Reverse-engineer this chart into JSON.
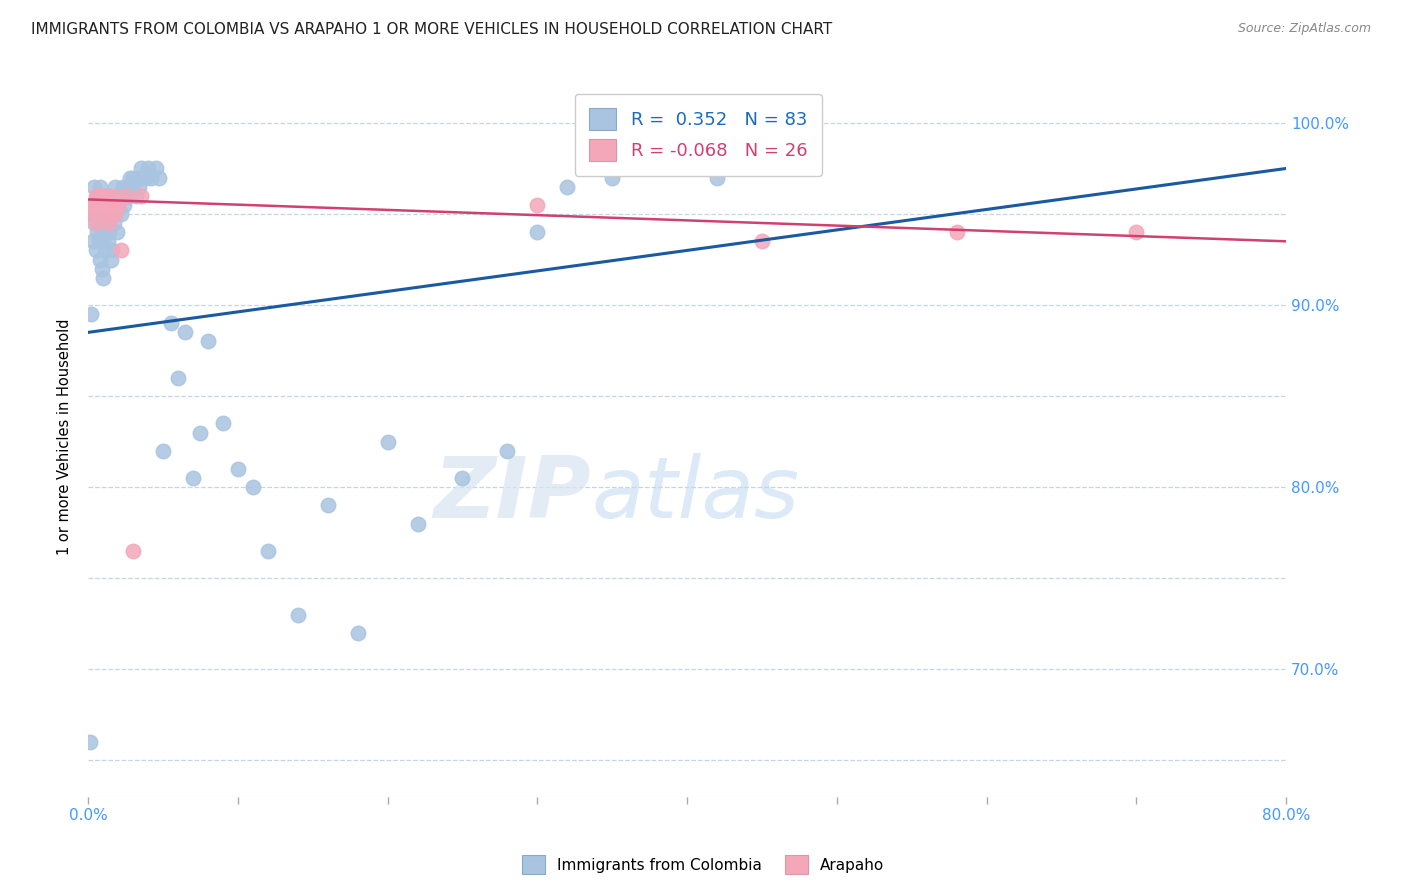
{
  "title": "IMMIGRANTS FROM COLOMBIA VS ARAPAHO 1 OR MORE VEHICLES IN HOUSEHOLD CORRELATION CHART",
  "source": "Source: ZipAtlas.com",
  "ylabel": "1 or more Vehicles in Household",
  "y_ticks": [
    65.0,
    70.0,
    75.0,
    80.0,
    85.0,
    90.0,
    95.0,
    100.0
  ],
  "y_tick_labels_right": [
    "",
    "70.0%",
    "",
    "80.0%",
    "",
    "90.0%",
    "",
    "100.0%"
  ],
  "xlim": [
    0.0,
    0.8
  ],
  "ylim": [
    63.0,
    102.5
  ],
  "blue_R": 0.352,
  "blue_N": 83,
  "pink_R": -0.068,
  "pink_N": 26,
  "legend_label_blue": "Immigrants from Colombia",
  "legend_label_pink": "Arapaho",
  "blue_color": "#a8c4e0",
  "pink_color": "#f4a7b9",
  "blue_line_color": "#1a5aa0",
  "pink_line_color": "#d04070",
  "watermark_zip": "ZIP",
  "watermark_atlas": "atlas",
  "blue_scatter_x": [
    0.001,
    0.002,
    0.003,
    0.003,
    0.004,
    0.004,
    0.005,
    0.005,
    0.006,
    0.006,
    0.007,
    0.007,
    0.008,
    0.008,
    0.008,
    0.009,
    0.009,
    0.01,
    0.01,
    0.01,
    0.011,
    0.011,
    0.012,
    0.012,
    0.013,
    0.013,
    0.014,
    0.014,
    0.015,
    0.015,
    0.016,
    0.016,
    0.017,
    0.018,
    0.018,
    0.019,
    0.02,
    0.021,
    0.022,
    0.023,
    0.024,
    0.025,
    0.026,
    0.027,
    0.028,
    0.029,
    0.03,
    0.032,
    0.033,
    0.034,
    0.035,
    0.036,
    0.038,
    0.04,
    0.042,
    0.045,
    0.047,
    0.05,
    0.055,
    0.06,
    0.065,
    0.07,
    0.075,
    0.08,
    0.09,
    0.1,
    0.11,
    0.12,
    0.14,
    0.16,
    0.18,
    0.2,
    0.22,
    0.25,
    0.28,
    0.3,
    0.32,
    0.35,
    0.38,
    0.4,
    0.42,
    0.45,
    0.001
  ],
  "blue_scatter_y": [
    66.0,
    89.5,
    93.5,
    95.5,
    94.5,
    96.5,
    93.0,
    95.0,
    94.0,
    96.0,
    93.5,
    95.5,
    92.5,
    94.5,
    96.5,
    92.0,
    94.0,
    91.5,
    93.5,
    95.5,
    93.0,
    95.0,
    94.5,
    96.0,
    93.5,
    95.5,
    94.0,
    96.0,
    92.5,
    95.0,
    93.0,
    95.5,
    94.5,
    95.0,
    96.5,
    94.0,
    95.5,
    96.0,
    95.0,
    96.5,
    95.5,
    96.0,
    96.5,
    96.0,
    97.0,
    96.5,
    97.0,
    96.0,
    97.0,
    96.5,
    97.5,
    97.0,
    97.0,
    97.5,
    97.0,
    97.5,
    97.0,
    82.0,
    89.0,
    86.0,
    88.5,
    80.5,
    83.0,
    88.0,
    83.5,
    81.0,
    80.0,
    76.5,
    73.0,
    79.0,
    72.0,
    82.5,
    78.0,
    80.5,
    82.0,
    94.0,
    96.5,
    97.0,
    97.5,
    97.5,
    97.0,
    97.5,
    95.0
  ],
  "pink_scatter_x": [
    0.003,
    0.004,
    0.005,
    0.005,
    0.006,
    0.007,
    0.008,
    0.009,
    0.01,
    0.011,
    0.012,
    0.013,
    0.014,
    0.015,
    0.016,
    0.017,
    0.018,
    0.02,
    0.022,
    0.025,
    0.03,
    0.035,
    0.3,
    0.45,
    0.58,
    0.7
  ],
  "pink_scatter_y": [
    95.5,
    95.0,
    96.0,
    94.5,
    95.5,
    96.0,
    95.5,
    96.0,
    95.5,
    96.0,
    95.5,
    95.0,
    94.5,
    95.5,
    95.5,
    96.0,
    95.0,
    95.5,
    93.0,
    96.0,
    76.5,
    96.0,
    95.5,
    93.5,
    94.0,
    94.0
  ],
  "blue_line_x": [
    0.0,
    0.8
  ],
  "blue_line_y": [
    88.5,
    97.5
  ],
  "pink_line_x": [
    0.0,
    0.8
  ],
  "pink_line_y": [
    95.8,
    93.5
  ]
}
